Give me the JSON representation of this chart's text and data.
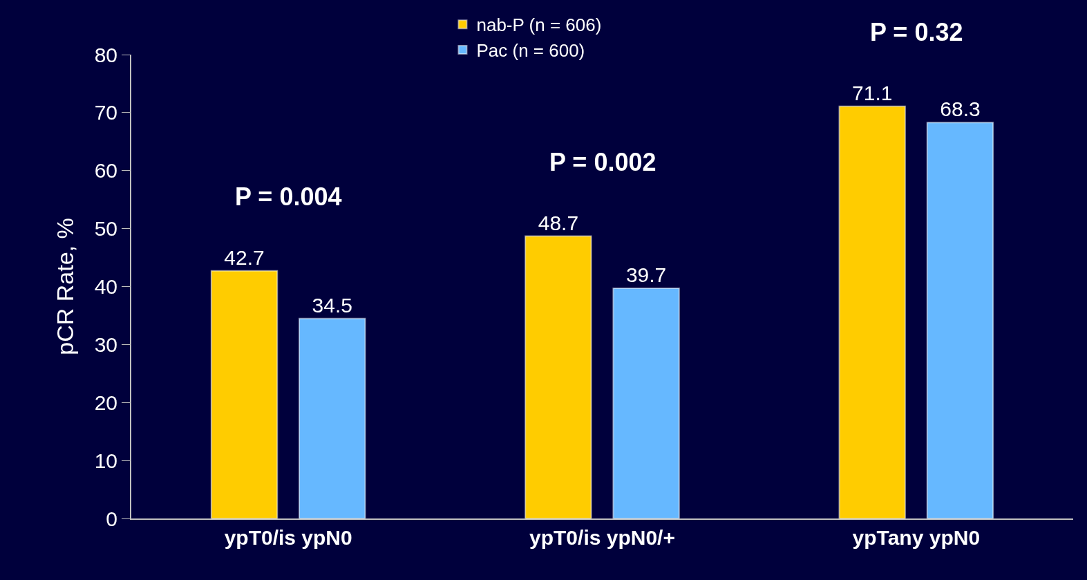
{
  "chart_data": {
    "type": "bar",
    "ylabel": "pCR Rate, %",
    "categories": [
      "ypT0/is ypN0",
      "ypT0/is ypN0/+",
      "ypTany ypN0"
    ],
    "series": [
      {
        "name": "nab-P (n = 606)",
        "color": "#ffcc00",
        "values": [
          42.7,
          48.7,
          71.1
        ]
      },
      {
        "name": "Pac (n = 600)",
        "color": "#66b8ff",
        "values": [
          34.5,
          39.7,
          68.3
        ]
      }
    ],
    "ylim": [
      0,
      80
    ],
    "yticks": [
      0,
      10,
      20,
      30,
      40,
      50,
      60,
      70,
      80
    ],
    "data_labels": true,
    "grid": false,
    "legend": "top",
    "annotations": [
      "P = 0.004",
      "P = 0.002",
      "P = 0.32"
    ]
  }
}
